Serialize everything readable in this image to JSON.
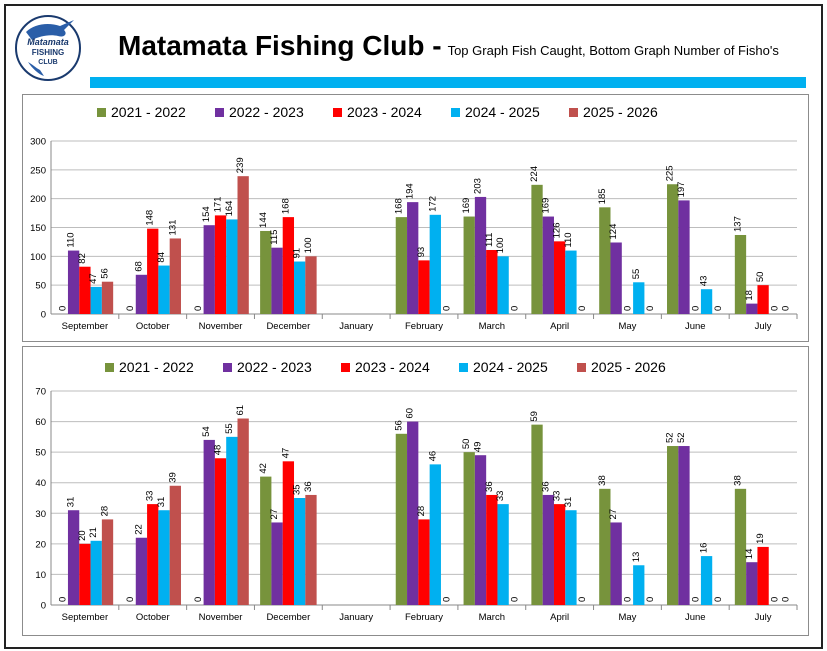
{
  "header": {
    "title": "Matamata Fishing Club -",
    "subtitle": "Top Graph Fish Caught, Bottom Graph Number of Fisho's",
    "accent_color": "#00B0F0"
  },
  "logo": {
    "text_line1": "Matamata",
    "text_line2": "FISHING",
    "text_line3": "CLUB",
    "icon": "marlin-fish-icon"
  },
  "chart_data": [
    {
      "type": "bar",
      "title": "Fish Caught",
      "xlabel": "",
      "ylabel": "",
      "ylim": [
        0,
        300
      ],
      "yticks": [
        0,
        50,
        100,
        150,
        200,
        250,
        300
      ],
      "legend_position": "top",
      "categories": [
        "September",
        "October",
        "November",
        "December",
        "January",
        "February",
        "March",
        "April",
        "May",
        "June",
        "July"
      ],
      "series": [
        {
          "name": "2021 - 2022",
          "color": "#77933C",
          "values": [
            0,
            0,
            0,
            144,
            null,
            168,
            169,
            224,
            185,
            225,
            137
          ]
        },
        {
          "name": "2022 - 2023",
          "color": "#7030A0",
          "values": [
            110,
            68,
            154,
            115,
            null,
            194,
            203,
            169,
            124,
            197,
            18
          ]
        },
        {
          "name": "2023 - 2024",
          "color": "#FF0000",
          "values": [
            82,
            148,
            171,
            168,
            null,
            93,
            111,
            126,
            0,
            0,
            50
          ]
        },
        {
          "name": "2024 - 2025",
          "color": "#00B0F0",
          "values": [
            47,
            84,
            164,
            91,
            null,
            172,
            100,
            110,
            55,
            43,
            0
          ]
        },
        {
          "name": "2025 - 2026",
          "color": "#C0504D",
          "values": [
            56,
            131,
            239,
            100,
            null,
            0,
            0,
            0,
            0,
            0,
            0
          ]
        }
      ]
    },
    {
      "type": "bar",
      "title": "Number of Fisho's",
      "xlabel": "",
      "ylabel": "",
      "ylim": [
        0,
        70
      ],
      "yticks": [
        0,
        10,
        20,
        30,
        40,
        50,
        60,
        70
      ],
      "legend_position": "top",
      "categories": [
        "September",
        "October",
        "November",
        "December",
        "January",
        "February",
        "March",
        "April",
        "May",
        "June",
        "July"
      ],
      "series": [
        {
          "name": "2021 - 2022",
          "color": "#77933C",
          "values": [
            0,
            0,
            0,
            42,
            null,
            56,
            50,
            59,
            38,
            52,
            38
          ]
        },
        {
          "name": "2022 - 2023",
          "color": "#7030A0",
          "values": [
            31,
            22,
            54,
            27,
            null,
            60,
            49,
            36,
            27,
            52,
            14
          ]
        },
        {
          "name": "2023 - 2024",
          "color": "#FF0000",
          "values": [
            20,
            33,
            48,
            47,
            null,
            28,
            36,
            33,
            0,
            0,
            19
          ]
        },
        {
          "name": "2024 - 2025",
          "color": "#00B0F0",
          "values": [
            21,
            31,
            55,
            35,
            null,
            46,
            33,
            31,
            13,
            16,
            0
          ]
        },
        {
          "name": "2025 - 2026",
          "color": "#C0504D",
          "values": [
            28,
            39,
            61,
            36,
            null,
            0,
            0,
            0,
            0,
            0,
            0
          ]
        }
      ]
    }
  ]
}
